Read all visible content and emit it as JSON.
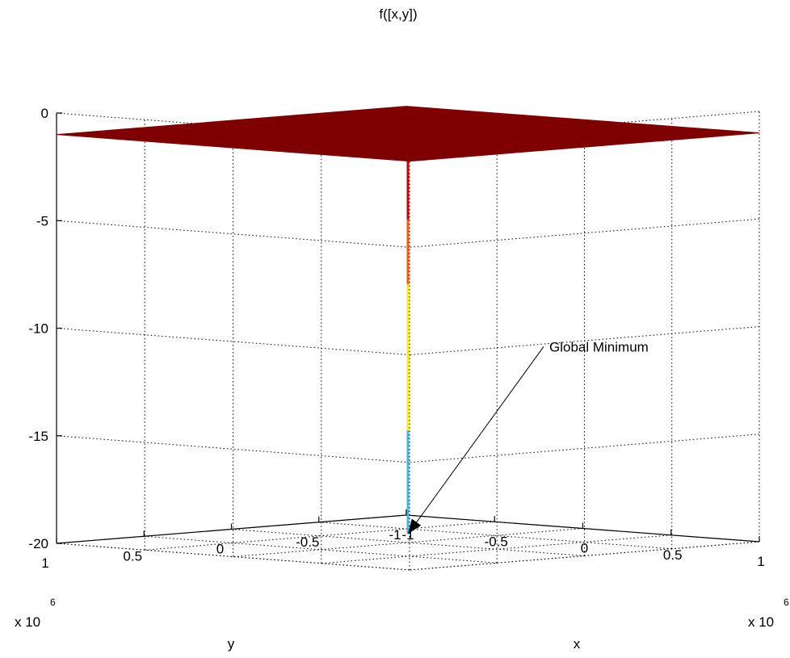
{
  "chart_data": {
    "type": "surface",
    "title": "f([x,y])",
    "xlabel": "x",
    "ylabel": "y",
    "zlabel": "",
    "xlim": [
      -1,
      1
    ],
    "ylim": [
      -1,
      1
    ],
    "zlim": [
      -20,
      0
    ],
    "x_ticks": [
      "-1",
      "-0.5",
      "0",
      "0.5",
      "1"
    ],
    "y_ticks": [
      "-1",
      "-0.5",
      "0",
      "0.5",
      "1"
    ],
    "z_ticks": [
      "-20",
      "-15",
      "-10",
      "-5",
      "0"
    ],
    "x_exponent_label": "x 10",
    "x_exponent": "6",
    "y_exponent_label": "x 10",
    "y_exponent": "6",
    "grid": true,
    "surface": {
      "plateau_value": -1,
      "plateau_color": "#7f0000",
      "spike_x": 0,
      "spike_y": 0,
      "spike_min": -19.6,
      "spike_segments": [
        {
          "from": -1,
          "to": -5,
          "color": "#d20000"
        },
        {
          "from": -5,
          "to": -8,
          "color": "#ff5a00"
        },
        {
          "from": -8,
          "to": -14.8,
          "color": "#ffee00"
        },
        {
          "from": -14.8,
          "to": -19.6,
          "color": "#3fb8e6"
        }
      ]
    },
    "annotations": [
      {
        "text": "Global Minimum",
        "x": 0,
        "y": 0,
        "z": -19.6
      }
    ]
  }
}
